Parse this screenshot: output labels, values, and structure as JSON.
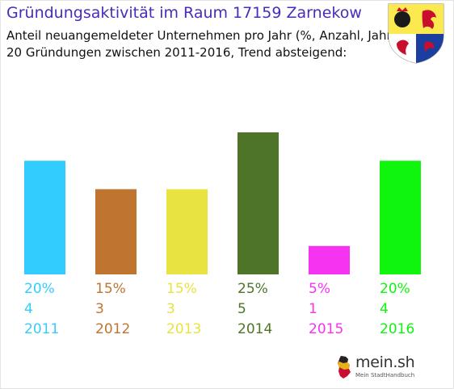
{
  "header": {
    "title": "Gründungsaktivität im Raum 17159 Zarnekow",
    "subtitle_line1": "Anteil neuangemeldeter Unternehmen pro Jahr (%, Anzahl, Jahr)",
    "subtitle_line2": "20 Gründungen zwischen 2011-2016, Trend absteigend:"
  },
  "crest": {
    "name": "coat-of-arms",
    "colors": [
      "#1b3fa0",
      "#fce94f",
      "#ffffff",
      "#c8102e"
    ]
  },
  "chart_data": {
    "type": "bar",
    "categories": [
      "2011",
      "2012",
      "2013",
      "2014",
      "2015",
      "2016"
    ],
    "values": [
      20,
      15,
      15,
      25,
      5,
      20
    ],
    "value_labels": [
      "20%",
      "15%",
      "15%",
      "25%",
      "5%",
      "20%"
    ],
    "counts": [
      "4",
      "3",
      "3",
      "5",
      "1",
      "4"
    ],
    "colors": [
      "#33ccff",
      "#bf7530",
      "#e8e340",
      "#4e7427",
      "#f533f0",
      "#0ff50d"
    ],
    "ylim": [
      0,
      25
    ],
    "grid": false,
    "title": "",
    "xlabel": "",
    "ylabel": ""
  },
  "footer": {
    "logo_text": "mein.sh",
    "logo_subtext": "Mein StadtHandbuch"
  }
}
